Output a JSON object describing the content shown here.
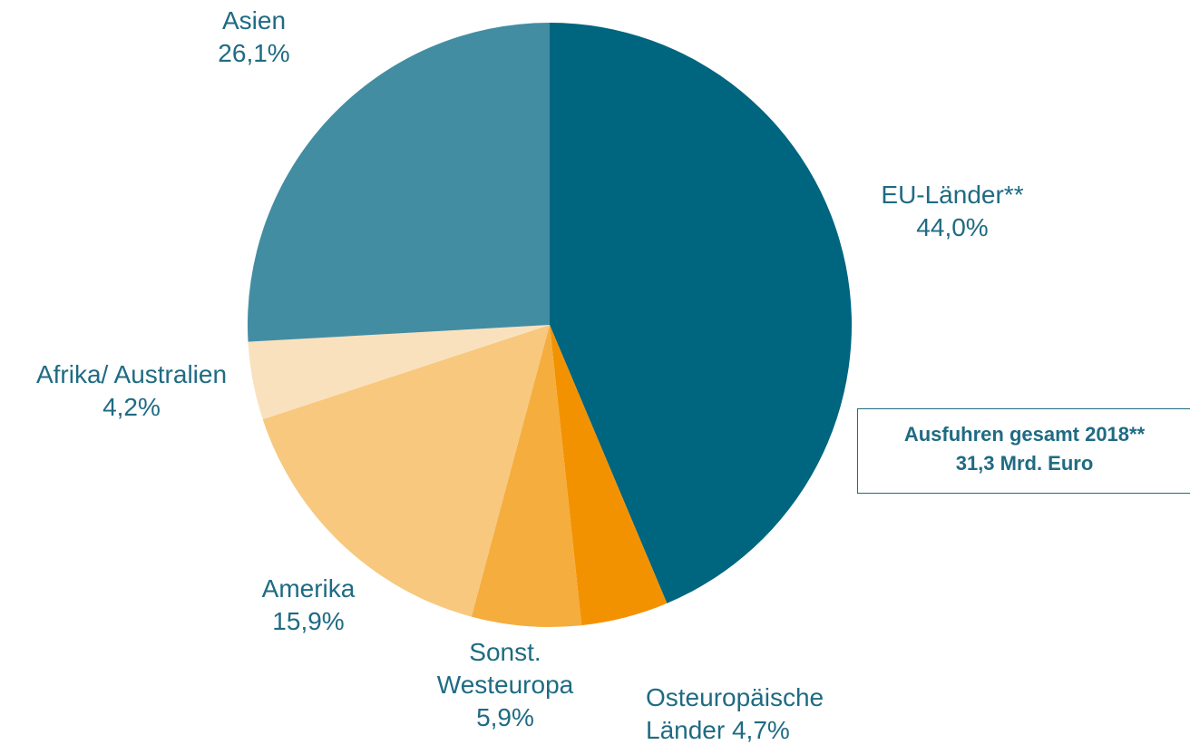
{
  "chart_data": {
    "type": "pie",
    "categories": [
      "EU-Länder**",
      "Osteuropäische Länder",
      "Sonst. Westeuropa",
      "Amerika",
      "Afrika/ Australien",
      "Asien"
    ],
    "values": [
      44.0,
      4.7,
      5.9,
      15.9,
      4.2,
      26.1
    ],
    "value_labels": [
      "44,0%",
      "4,7%",
      "5,9%",
      "15,9%",
      "4,2%",
      "26,1%"
    ],
    "colors": [
      "#00657f",
      "#f39200",
      "#f5ad3e",
      "#f7c87e",
      "#fae1bd",
      "#438da3"
    ],
    "annotation": [
      "Ausfuhren gesamt 2018**",
      "31,3 Mrd. Euro"
    ]
  }
}
